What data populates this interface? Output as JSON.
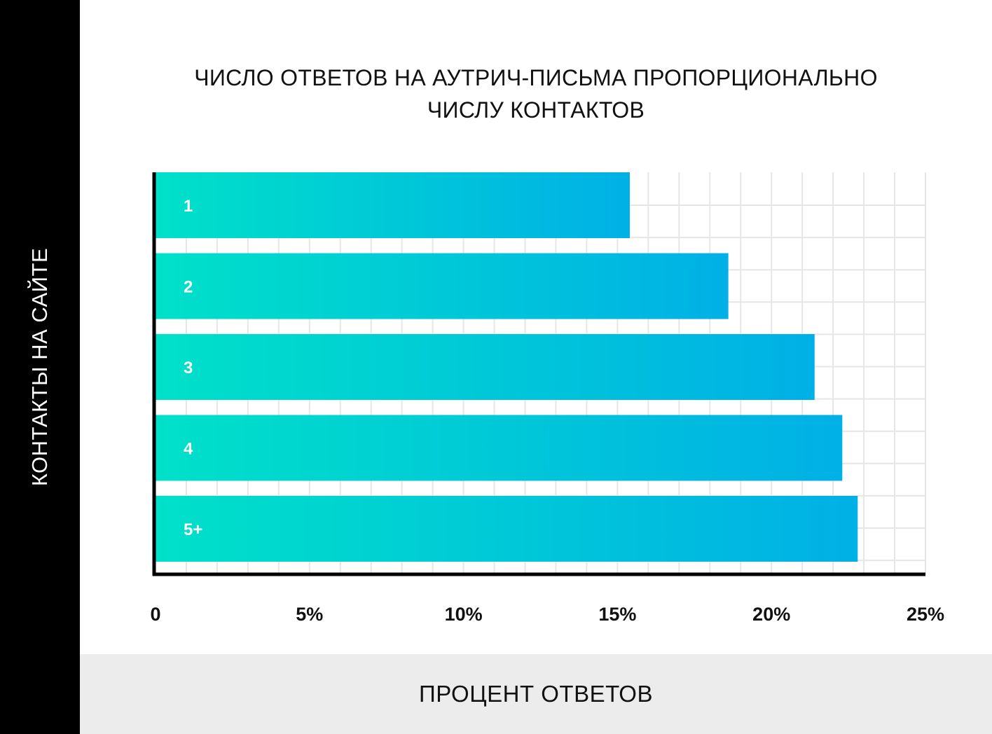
{
  "chart_data": {
    "type": "bar",
    "orientation": "horizontal",
    "title_lines": [
      "ЧИСЛО ОТВЕТОВ НА АУТРИЧ-ПИСЬМА ПРОПОРЦИОНАЛЬНО",
      "ЧИСЛУ КОНТАКТОВ"
    ],
    "xlabel": "ПРОЦЕНТ ОТВЕТОВ",
    "ylabel": "КОНТАКТЫ НА САЙТЕ",
    "categories": [
      "1",
      "2",
      "3",
      "4",
      "5+"
    ],
    "values": [
      15.4,
      18.6,
      21.4,
      22.3,
      22.8
    ],
    "xlim": [
      0,
      25
    ],
    "x_ticks": [
      {
        "value": 0,
        "label": "0"
      },
      {
        "value": 5,
        "label": "5%"
      },
      {
        "value": 10,
        "label": "10%"
      },
      {
        "value": 15,
        "label": "15%"
      },
      {
        "value": 20,
        "label": "20%"
      },
      {
        "value": 25,
        "label": "25%"
      }
    ],
    "grid": true,
    "bar_gradient": [
      "#00e1c9",
      "#00b0e6"
    ],
    "axis_color": "#000000",
    "grid_color": "#e6e6e6"
  }
}
